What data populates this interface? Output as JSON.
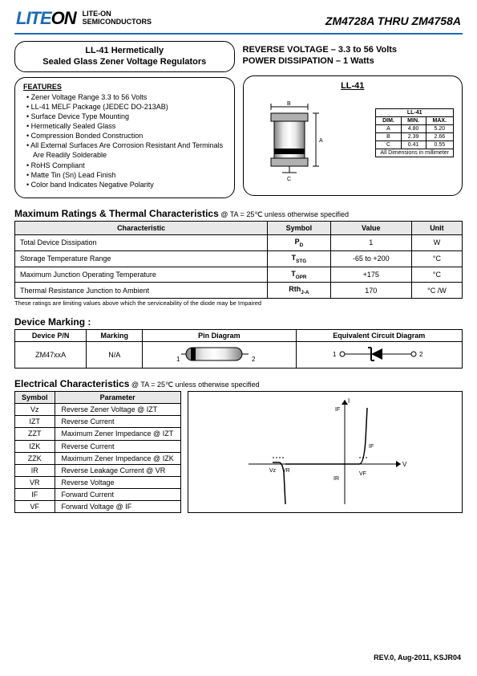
{
  "header": {
    "logo_lite": "LITE",
    "logo_on": "ON",
    "sub1": "LITE-ON",
    "sub2": "SEMICONDUCTORS",
    "part_range": "ZM4728A THRU ZM4758A"
  },
  "left_title1": "LL-41 Hermetically",
  "left_title2": "Sealed Glass Zener Voltage Regulators",
  "right_title1": "REVERSE VOLTAGE – 3.3 to 56 Volts",
  "right_title2": "POWER DISSIPATION – 1 Watts",
  "features_heading": "FEATURES",
  "features": [
    "Zener Voltage Range 3.3 to 56 Volts",
    "LL-41 MELF Package (JEDEC DO-213AB)",
    "Surface Device Type Mounting",
    "Hermetically Sealed Glass",
    "Compression Bonded Construction",
    "All External Surfaces Are Corrosion Resistant And Terminals Are Readily Solderable",
    "RoHS Compliant",
    "Matte Tin (Sn) Lead Finish",
    "Color band Indicates Negative Polarity"
  ],
  "package": {
    "title": "LL-41",
    "dim_header": "LL-41",
    "cols": [
      "DIM.",
      "MIN.",
      "MAX."
    ],
    "rows": [
      [
        "A",
        "4.80",
        "5.20"
      ],
      [
        "B",
        "2.39",
        "2.66"
      ],
      [
        "C",
        "0.41",
        "0.55"
      ]
    ],
    "note": "All Dimensions in millimeter"
  },
  "max_ratings": {
    "title": "Maximum Ratings & Thermal Characteristics",
    "cond": " @ TA = 25℃ unless otherwise specified",
    "cols": [
      "Characteristic",
      "Symbol",
      "Value",
      "Unit"
    ],
    "rows": [
      [
        "Total Device Dissipation",
        "P",
        "D",
        "1",
        "W"
      ],
      [
        "Storage Temperature Range",
        "T",
        "STG",
        "-65 to +200",
        "°C"
      ],
      [
        "Maximum Junction Operating Temperature",
        "T",
        "OPR",
        "+175",
        "°C"
      ],
      [
        "Thermal Resistance Junction to Ambient",
        "Rth",
        "J-A",
        "170",
        "°C /W"
      ]
    ],
    "footnote": "These ratings are limiting values above which the serviceability of the diode may be Impaired"
  },
  "marking": {
    "title": "Device Marking :",
    "cols": [
      "Device P/N",
      "Marking",
      "Pin Diagram",
      "Equivalent Circuit Diagram"
    ],
    "pn": "ZM47xxA",
    "mark": "N/A"
  },
  "electrical": {
    "title": "Electrical Characteristics",
    "cond": " @ TA = 25℃ unless otherwise specified",
    "cols": [
      "Symbol",
      "Parameter"
    ],
    "rows": [
      [
        "Vz",
        "Reverse Zener Voltage @ IZT"
      ],
      [
        "IZT",
        "Reverse Current"
      ],
      [
        "ZZT",
        "Maximum Zener Impedance @ IZT"
      ],
      [
        "IZK",
        "Reverse Current"
      ],
      [
        "ZZK",
        "Maximum Zener Impedance @ IZK"
      ],
      [
        "IR",
        "Reverse Leakage Current @ VR"
      ],
      [
        "VR",
        "Reverse Voltage"
      ],
      [
        "IF",
        "Forward Current"
      ],
      [
        "VF",
        "Forward Voltage @ IF"
      ]
    ]
  },
  "revision": "REV.0, Aug-2011, KSJR04",
  "colors": {
    "brand": "#1a6bb3",
    "cylinder_light": "#d8d8d8",
    "cylinder_dark": "#808080"
  }
}
